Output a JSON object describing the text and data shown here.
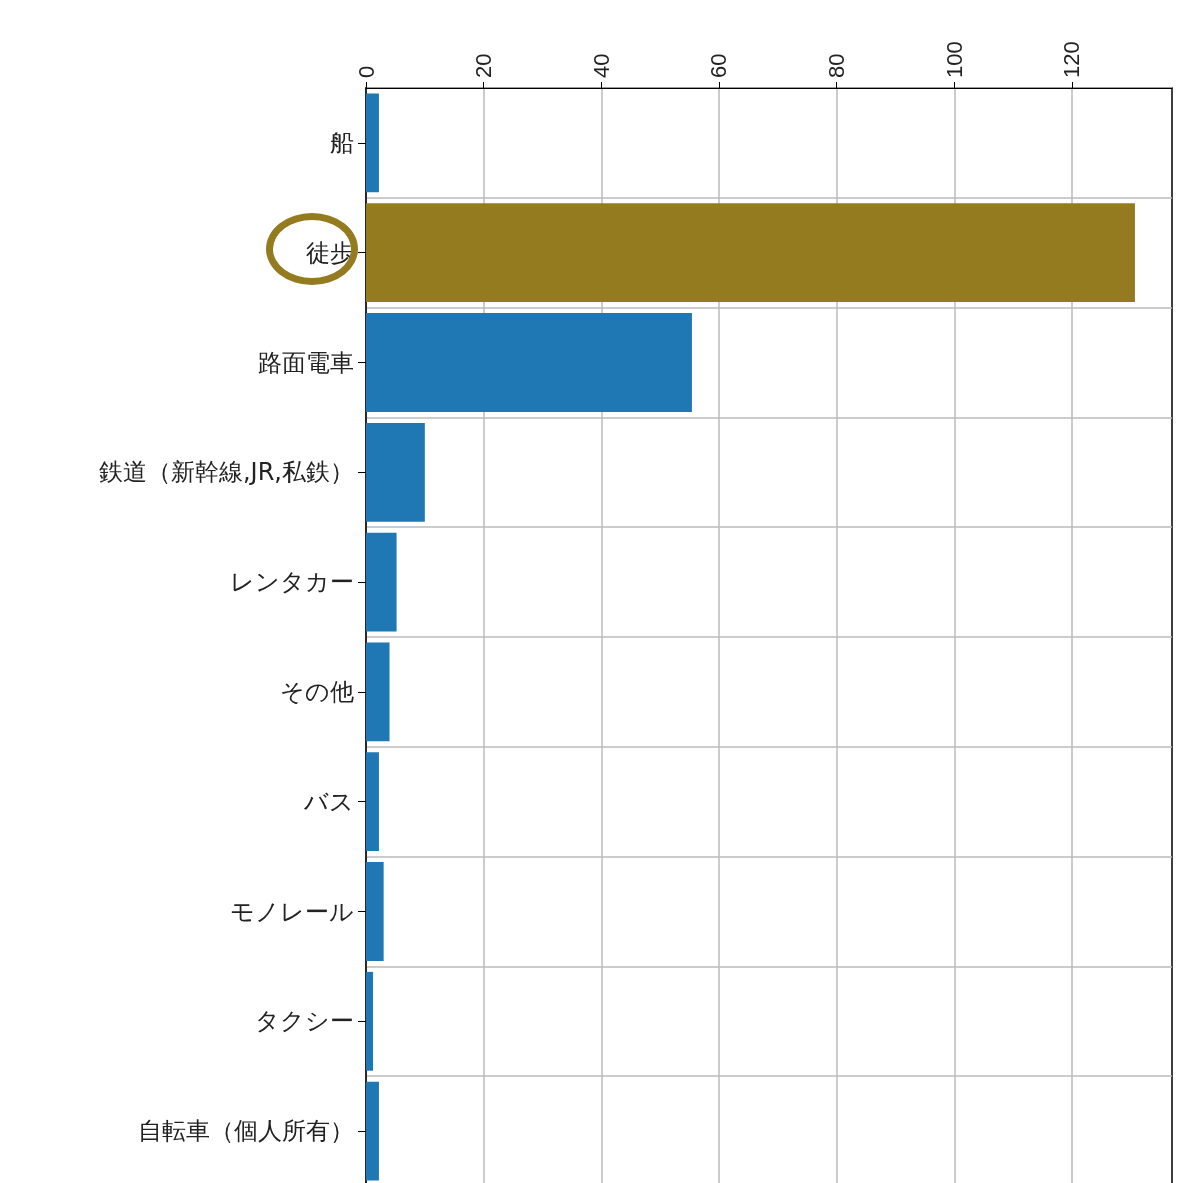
{
  "chart_data": {
    "type": "bar",
    "orientation": "horizontal",
    "categories": [
      "船",
      "徒歩",
      "路面電車",
      "鉄道（新幹線,JR,私鉄）",
      "レンタカー",
      "その他",
      "バス",
      "モノレール",
      "タクシー",
      "自転車（個人所有）"
    ],
    "values": [
      2.2,
      130.7,
      55.4,
      10.0,
      5.2,
      4.0,
      2.2,
      3.0,
      1.2,
      2.2
    ],
    "colors": [
      "#1f77b4",
      "#957b1f",
      "#1f77b4",
      "#1f77b4",
      "#1f77b4",
      "#1f77b4",
      "#1f77b4",
      "#1f77b4",
      "#1f77b4",
      "#1f77b4"
    ],
    "xlim": [
      0,
      137
    ],
    "xticks": [
      0,
      20,
      40,
      60,
      80,
      100,
      120
    ],
    "grid": true
  }
}
